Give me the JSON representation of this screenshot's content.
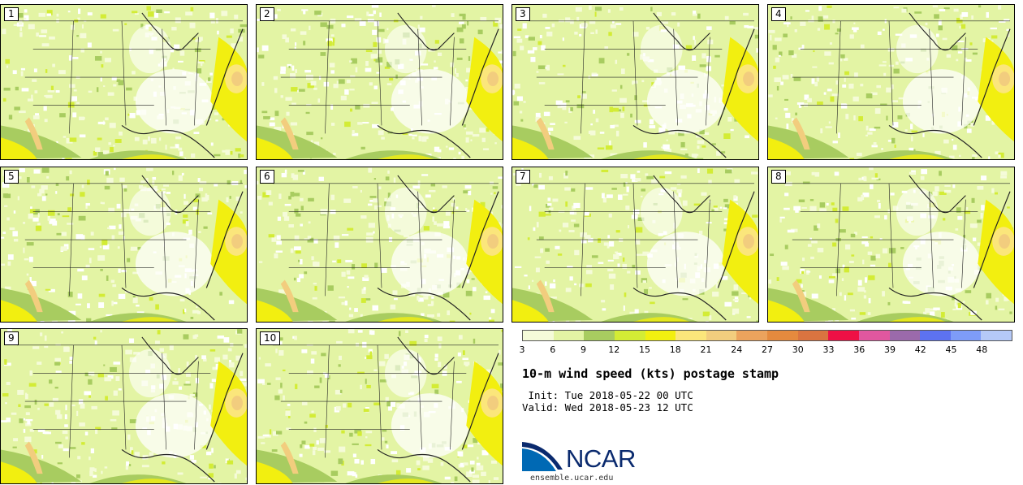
{
  "panels": [
    {
      "label": "1"
    },
    {
      "label": "2"
    },
    {
      "label": "3"
    },
    {
      "label": "4"
    },
    {
      "label": "5"
    },
    {
      "label": "6"
    },
    {
      "label": "7"
    },
    {
      "label": "8"
    },
    {
      "label": "9"
    },
    {
      "label": "10"
    }
  ],
  "legend": {
    "colors": [
      "#f5fbd9",
      "#e3f4a4",
      "#a8cc60",
      "#d3ec35",
      "#f2ef10",
      "#fbe67b",
      "#f2cd7e",
      "#eca35d",
      "#e58a3e",
      "#da7440",
      "#ee1045",
      "#e0579f",
      "#9b6aab",
      "#5d72f0",
      "#7e9cf8",
      "#b5c9f7"
    ],
    "ticks": [
      "3",
      "6",
      "9",
      "12",
      "15",
      "18",
      "21",
      "24",
      "27",
      "30",
      "33",
      "36",
      "39",
      "42",
      "45",
      "48"
    ]
  },
  "title": "10-m wind speed (kts) postage stamp",
  "init": " Init: Tue 2018-05-22 00 UTC",
  "valid": "Valid: Wed 2018-05-23 12 UTC",
  "logo": {
    "text": "NCAR",
    "site": "ensemble.ucar.edu",
    "colors": {
      "blue": "#0069b4",
      "dark": "#0a2a6e"
    }
  }
}
